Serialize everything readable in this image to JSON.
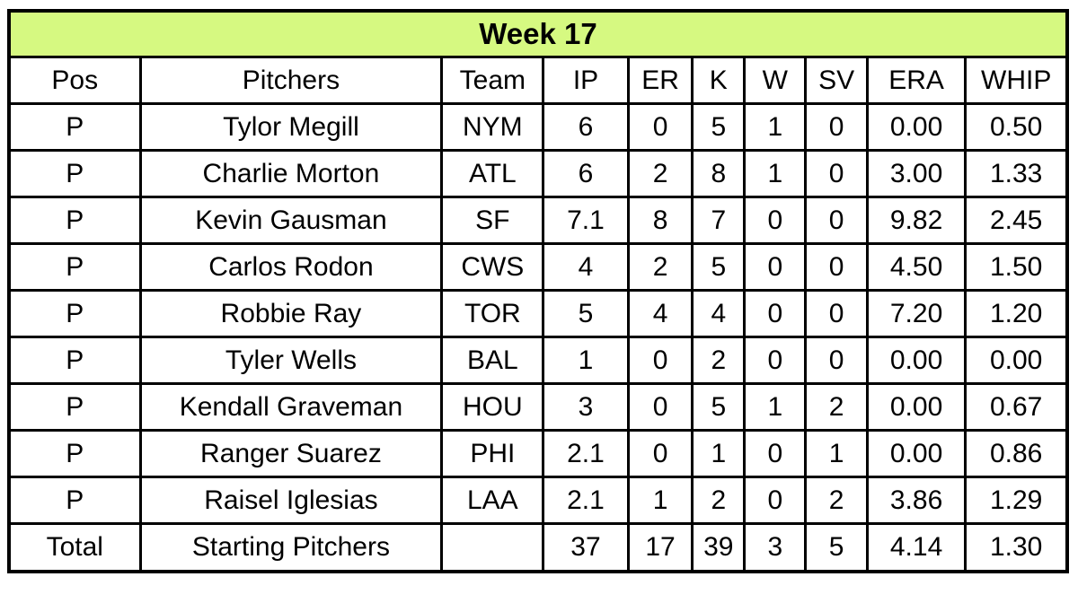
{
  "chart_data": {
    "type": "table",
    "title": "Week 17",
    "columns": [
      "Pos",
      "Pitchers",
      "Team",
      "IP",
      "ER",
      "K",
      "W",
      "SV",
      "ERA",
      "WHIP"
    ],
    "rows": [
      [
        "P",
        "Tylor Megill",
        "NYM",
        "6",
        "0",
        "5",
        "1",
        "0",
        "0.00",
        "0.50"
      ],
      [
        "P",
        "Charlie Morton",
        "ATL",
        "6",
        "2",
        "8",
        "1",
        "0",
        "3.00",
        "1.33"
      ],
      [
        "P",
        "Kevin Gausman",
        "SF",
        "7.1",
        "8",
        "7",
        "0",
        "0",
        "9.82",
        "2.45"
      ],
      [
        "P",
        "Carlos Rodon",
        "CWS",
        "4",
        "2",
        "5",
        "0",
        "0",
        "4.50",
        "1.50"
      ],
      [
        "P",
        "Robbie Ray",
        "TOR",
        "5",
        "4",
        "4",
        "0",
        "0",
        "7.20",
        "1.20"
      ],
      [
        "P",
        "Tyler Wells",
        "BAL",
        "1",
        "0",
        "2",
        "0",
        "0",
        "0.00",
        "0.00"
      ],
      [
        "P",
        "Kendall Graveman",
        "HOU",
        "3",
        "0",
        "5",
        "1",
        "2",
        "0.00",
        "0.67"
      ],
      [
        "P",
        "Ranger Suarez",
        "PHI",
        "2.1",
        "0",
        "1",
        "0",
        "1",
        "0.00",
        "0.86"
      ],
      [
        "P",
        "Raisel Iglesias",
        "LAA",
        "2.1",
        "1",
        "2",
        "0",
        "2",
        "3.86",
        "1.29"
      ]
    ],
    "total_row": [
      "Total",
      "Starting Pitchers",
      "",
      "37",
      "17",
      "39",
      "3",
      "5",
      "4.14",
      "1.30"
    ],
    "layout": {
      "legend": "none",
      "grid": "all-borders",
      "title_position": "top-banner"
    }
  },
  "colors": {
    "title_bg": "#d6f981",
    "border": "#000000",
    "cell_bg": "#ffffff",
    "text": "#000000"
  }
}
